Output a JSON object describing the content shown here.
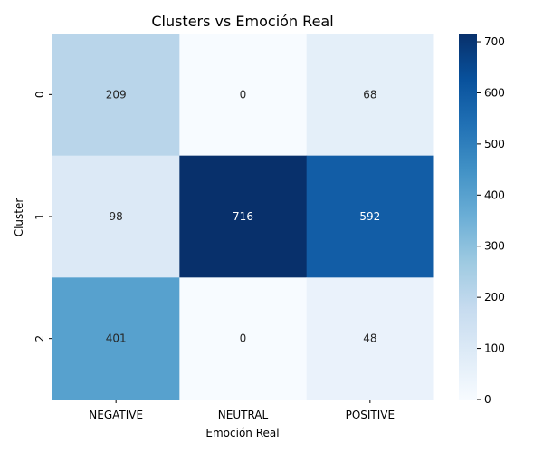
{
  "chart_data": {
    "type": "heatmap",
    "title": "Clusters vs Emoción Real",
    "xlabel": "Emoción Real",
    "ylabel": "Cluster",
    "x_categories": [
      "NEGATIVE",
      "NEUTRAL",
      "POSITIVE"
    ],
    "y_categories": [
      "0",
      "1",
      "2"
    ],
    "values": [
      [
        209,
        0,
        68
      ],
      [
        98,
        716,
        592
      ],
      [
        401,
        0,
        48
      ]
    ],
    "colormap": "Blues",
    "vmin": 0,
    "vmax": 716,
    "colorbar_ticks": [
      0,
      100,
      200,
      300,
      400,
      500,
      600,
      700
    ],
    "colors": {
      "low": "#f7fbff",
      "high": "#08306b"
    }
  }
}
